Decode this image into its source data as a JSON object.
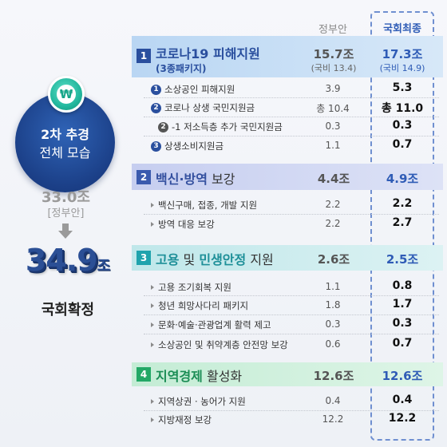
{
  "left": {
    "circle_line1": "2차 추경",
    "circle_line2": "전체 모습",
    "gov_total": "33.0조",
    "gov_tag": "[정부안]",
    "final_total_num": "34.9",
    "final_total_unit": "조",
    "final_label": "국회확정",
    "coin_symbol": "₩"
  },
  "headers": {
    "gov": "정부안",
    "final": "국회최종"
  },
  "sections": [
    {
      "num": "1",
      "title_bold": "코로나19 피해지원",
      "title_rest": "",
      "title_prefix": "",
      "subtitle": "(3종패키지)",
      "gov": "15.7조",
      "gov_sub": "(국비 13.4)",
      "final": "17.3조",
      "final_sub": "(국비 14.9)",
      "rows": [
        {
          "badge": "1",
          "label": "소상공인 피해지원",
          "gov": "3.9",
          "final": "5.3"
        },
        {
          "badge": "2",
          "label": "코로나 상생 국민지원금",
          "gov": "총 10.4",
          "final": "총 11.0"
        },
        {
          "badge": "2",
          "label": "-1 저소득층 추가 국민지원금",
          "gov": "0.3",
          "final": "0.3"
        },
        {
          "badge": "3",
          "label": "상생소비지원금",
          "gov": "1.1",
          "final": "0.7"
        }
      ]
    },
    {
      "num": "2",
      "title_bold": "백신·방역",
      "title_rest": " 보강",
      "gov": "4.4조",
      "final": "4.9조",
      "rows": [
        {
          "label": "백신구매, 접종, 개발 지원",
          "gov": "2.2",
          "final": "2.2"
        },
        {
          "label": "방역 대응 보강",
          "gov": "2.2",
          "final": "2.7"
        }
      ]
    },
    {
      "num": "3",
      "title_bold1": "고용",
      "title_mid": " 및 ",
      "title_bold2": "민생안정",
      "title_rest": " 지원",
      "gov": "2.6조",
      "final": "2.5조",
      "rows": [
        {
          "label": "고용 조기회복 지원",
          "gov": "1.1",
          "final": "0.8"
        },
        {
          "label": "청년 희망사다리 패키지",
          "gov": "1.8",
          "final": "1.7"
        },
        {
          "label": "문화·예술·관광업계 활력 제고",
          "gov": "0.3",
          "final": "0.3"
        },
        {
          "label": "소상공인 및 취약계층 안전망 보강",
          "gov": "0.6",
          "final": "0.7"
        }
      ]
    },
    {
      "num": "4",
      "title_bold": "지역경제",
      "title_rest": " 활성화",
      "gov": "12.6조",
      "final": "12.6조",
      "rows": [
        {
          "label": "지역상권 · 농어가 지원",
          "gov": "0.4",
          "final": "0.4"
        },
        {
          "label": "지방재정 보강",
          "gov": "12.2",
          "final": "12.2"
        }
      ]
    }
  ],
  "colors": {
    "navy": "#1b3f87",
    "accent_blue": "#2f5cb6",
    "teal": "#1fa3ad",
    "green": "#23a866"
  }
}
